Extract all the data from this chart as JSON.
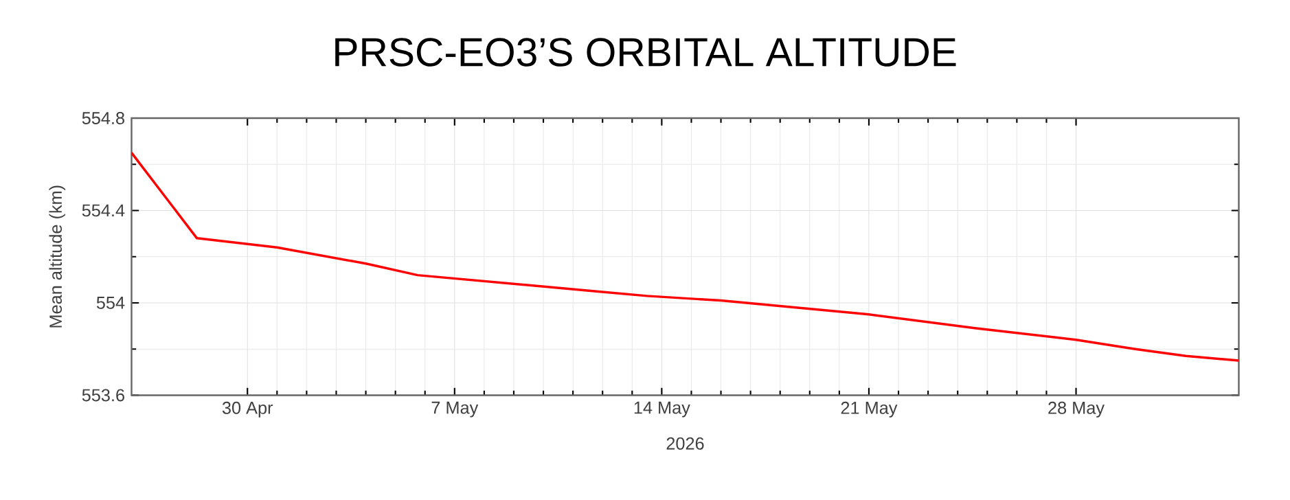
{
  "chart_data": {
    "type": "line",
    "title": "PRSC-EO3’S ORBITAL ALTITUDE",
    "xlabel": "2026",
    "ylabel": "Mean altitude (km)",
    "x": [
      "2026-04-26T02:00",
      "2026-04-28T07:00",
      "2026-05-01T00:00",
      "2026-05-04T00:00",
      "2026-05-05T18:00",
      "2026-05-11T19:00",
      "2026-05-13T12:00",
      "2026-05-16T00:00",
      "2026-05-21T00:00",
      "2026-05-24T15:00",
      "2026-05-28T00:00",
      "2026-05-30T00:00",
      "2026-05-31T17:00",
      "2026-06-02T12:00"
    ],
    "series": [
      {
        "color": "#ff0000",
        "values": [
          554.65,
          554.28,
          554.24,
          554.17,
          554.12,
          554.05,
          554.03,
          554.01,
          553.95,
          553.89,
          553.84,
          553.8,
          553.77,
          553.75
        ]
      }
    ],
    "xlim": [
      "2026-04-26T02:00",
      "2026-06-02T12:00"
    ],
    "ylim": [
      553.6,
      554.8
    ],
    "xticks": [
      {
        "value": "2026-04-30",
        "label": "30 Apr"
      },
      {
        "value": "2026-05-07",
        "label": "7 May"
      },
      {
        "value": "2026-05-14",
        "label": "14 May"
      },
      {
        "value": "2026-05-21",
        "label": "21 May"
      },
      {
        "value": "2026-05-28",
        "label": "28 May"
      }
    ],
    "yticks": [
      553.6,
      554,
      554.4,
      554.8
    ],
    "grid": true
  }
}
